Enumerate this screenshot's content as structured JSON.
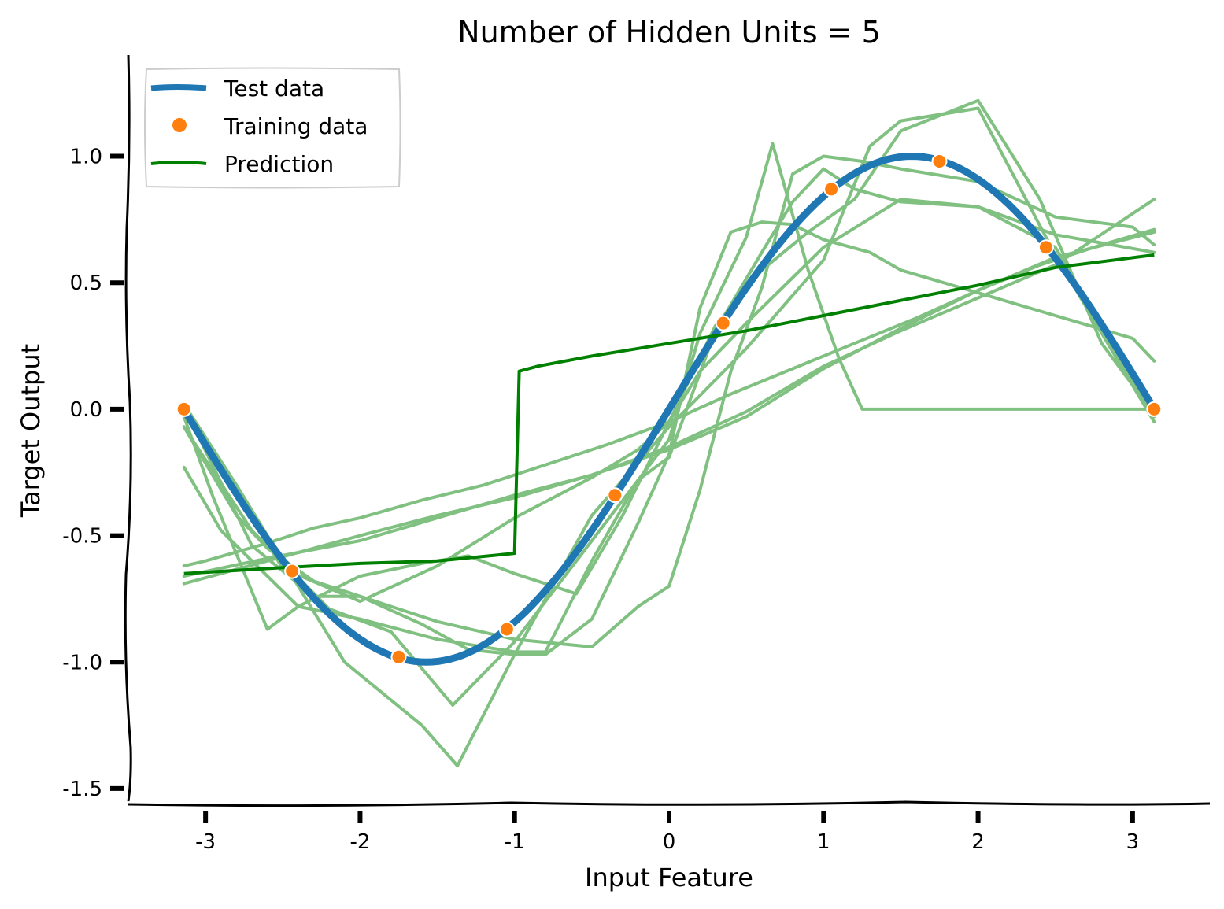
{
  "chart_data": {
    "type": "line",
    "title": "Number of Hidden Units = 5",
    "xlabel": "Input Feature",
    "ylabel": "Target Output",
    "xlim": [
      -3.5,
      3.5
    ],
    "ylim": [
      -1.55,
      1.4
    ],
    "x_ticks": [
      -3,
      -2,
      -1,
      0,
      1,
      2,
      3
    ],
    "x_tick_labels": [
      "-3",
      "-2",
      "-1",
      "0",
      "1",
      "2",
      "3"
    ],
    "y_ticks": [
      -1.5,
      -1.0,
      -0.5,
      0.0,
      0.5,
      1.0
    ],
    "y_tick_labels": [
      "-1.5",
      "-1.0",
      "-0.5",
      "0.0",
      "0.5",
      "1.0"
    ],
    "grid": false,
    "legend": {
      "placement": "top-left",
      "entries": [
        "Test data",
        "Training data",
        "Prediction"
      ]
    },
    "colors": {
      "test": "#1f77b4",
      "training": "#ff7f0e",
      "prediction": "#008000",
      "ensemble": "#80c080"
    },
    "test_curve": {
      "name": "Test data",
      "function": "sin(x)",
      "x_range": [
        -3.1416,
        3.1416
      ]
    },
    "training_points": {
      "name": "Training data",
      "x": [
        -3.14,
        -2.44,
        -1.75,
        -1.05,
        -0.35,
        0.35,
        1.05,
        1.75,
        2.44,
        3.14
      ],
      "y": [
        0.0,
        -0.64,
        -0.98,
        -0.87,
        -0.34,
        0.34,
        0.87,
        0.98,
        0.64,
        0.0
      ]
    },
    "prediction": {
      "name": "Prediction",
      "x": [
        -3.14,
        -2.6,
        -2.0,
        -1.5,
        -1.0,
        -0.97,
        -0.85,
        -0.5,
        -0.2,
        0.0,
        0.5,
        1.0,
        1.5,
        2.0,
        2.5,
        3.14
      ],
      "y": [
        -0.65,
        -0.63,
        -0.61,
        -0.6,
        -0.57,
        0.15,
        0.17,
        0.21,
        0.24,
        0.26,
        0.31,
        0.37,
        0.43,
        0.49,
        0.56,
        0.61
      ]
    },
    "ensemble_predictions": [
      {
        "x": [
          -3.14,
          -3.0,
          -2.6,
          -2.3,
          -2.0,
          -1.6,
          -1.2,
          -0.8,
          -0.4,
          0.0,
          0.4,
          0.8,
          1.2,
          1.6,
          2.0,
          2.4,
          2.8,
          3.14
        ],
        "y": [
          -0.62,
          -0.6,
          -0.53,
          -0.47,
          -0.43,
          -0.36,
          -0.3,
          -0.22,
          -0.14,
          -0.05,
          0.06,
          0.16,
          0.26,
          0.36,
          0.47,
          0.57,
          0.65,
          0.71
        ]
      },
      {
        "x": [
          -3.14,
          -2.6,
          -2.0,
          -1.5,
          -1.0,
          -0.5,
          0.0,
          0.5,
          1.0,
          1.5,
          2.0,
          2.5,
          3.14
        ],
        "y": [
          -0.69,
          -0.6,
          -0.5,
          -0.42,
          -0.35,
          -0.26,
          -0.15,
          -0.01,
          0.17,
          0.31,
          0.44,
          0.57,
          0.83
        ]
      },
      {
        "x": [
          -3.14,
          -2.6,
          -2.0,
          -1.5,
          -1.0,
          -0.5,
          0.0,
          0.5,
          1.0,
          1.5,
          2.0,
          2.5,
          3.14
        ],
        "y": [
          -0.66,
          -0.59,
          -0.52,
          -0.43,
          -0.34,
          -0.26,
          -0.16,
          -0.03,
          0.16,
          0.32,
          0.47,
          0.6,
          0.7
        ]
      },
      {
        "x": [
          -3.14,
          -2.5,
          -2.0,
          -1.5,
          -1.0,
          -0.5,
          -0.2,
          0.0,
          0.2,
          0.5,
          1.0,
          1.5,
          2.0,
          2.5,
          3.14
        ],
        "y": [
          0.0,
          -0.63,
          -0.76,
          -0.62,
          -0.43,
          -0.27,
          -0.16,
          -0.05,
          0.15,
          0.34,
          0.64,
          0.83,
          0.8,
          0.69,
          0.62
        ]
      },
      {
        "x": [
          -3.14,
          -2.8,
          -2.4,
          -2.1,
          -1.9,
          -1.6,
          -1.37,
          -1.0,
          -0.5,
          0.0,
          0.5,
          1.0,
          1.3,
          1.5,
          2.0,
          2.5,
          3.14
        ],
        "y": [
          0.02,
          -0.3,
          -0.7,
          -1.0,
          -1.1,
          -1.25,
          -1.41,
          -0.97,
          -0.42,
          -0.07,
          0.24,
          0.59,
          1.04,
          1.14,
          1.19,
          0.61,
          -0.05
        ]
      },
      {
        "x": [
          -3.14,
          -2.7,
          -2.2,
          -1.8,
          -1.4,
          -1.0,
          -0.5,
          0.0,
          0.2,
          0.5,
          0.67,
          0.9,
          1.1,
          1.25,
          1.5,
          2.0,
          2.5,
          3.14
        ],
        "y": [
          -0.07,
          -0.48,
          -0.79,
          -0.88,
          -1.17,
          -0.92,
          -0.52,
          -0.12,
          0.3,
          0.68,
          1.05,
          0.55,
          0.2,
          0.0,
          0.0,
          0.0,
          0.0,
          0.0
        ]
      },
      {
        "x": [
          -3.14,
          -2.9,
          -2.4,
          -2.0,
          -1.5,
          -1.0,
          -0.8,
          -0.5,
          -0.2,
          0.0,
          0.3,
          0.6,
          0.8,
          1.0,
          1.2,
          1.5,
          2.0,
          2.5,
          3.14
        ],
        "y": [
          -0.23,
          -0.48,
          -0.78,
          -0.83,
          -0.91,
          -0.96,
          -0.96,
          -0.6,
          -0.28,
          -0.19,
          0.31,
          0.62,
          0.82,
          0.95,
          0.87,
          0.82,
          0.8,
          0.64,
          -0.03
        ]
      },
      {
        "x": [
          -3.14,
          -2.95,
          -2.6,
          -2.4,
          -2.0,
          -1.6,
          -1.3,
          -1.0,
          -0.6,
          -0.3,
          0.0,
          0.3,
          0.6,
          0.9,
          1.2,
          1.5,
          2.0,
          2.4,
          2.8,
          3.14
        ],
        "y": [
          -0.03,
          -0.35,
          -0.87,
          -0.78,
          -0.66,
          -0.61,
          -0.58,
          -0.65,
          -0.73,
          -0.42,
          -0.05,
          0.33,
          0.55,
          0.7,
          0.83,
          1.1,
          1.22,
          0.83,
          0.26,
          -0.02
        ]
      },
      {
        "x": [
          -3.14,
          -2.8,
          -2.6,
          -2.3,
          -2.0,
          -1.5,
          -1.0,
          -0.5,
          -0.2,
          0.0,
          0.2,
          0.4,
          0.6,
          0.8,
          1.0,
          1.25,
          1.5,
          2.0,
          2.5,
          3.0,
          3.14
        ],
        "y": [
          -0.07,
          -0.42,
          -0.55,
          -0.68,
          -0.74,
          -0.84,
          -0.91,
          -0.94,
          -0.78,
          -0.7,
          -0.32,
          0.15,
          0.48,
          0.93,
          1.0,
          0.98,
          0.95,
          0.9,
          0.76,
          0.72,
          0.65
        ]
      },
      {
        "x": [
          -3.14,
          -2.7,
          -2.3,
          -2.0,
          -1.6,
          -1.3,
          -1.0,
          -0.8,
          -0.5,
          -0.2,
          0.0,
          0.2,
          0.4,
          0.6,
          0.8,
          1.0,
          1.3,
          1.5,
          2.0,
          2.5,
          3.0,
          3.14
        ],
        "y": [
          0.01,
          -0.54,
          -0.74,
          -0.74,
          -0.85,
          -0.95,
          -0.97,
          -0.97,
          -0.83,
          -0.45,
          -0.18,
          0.4,
          0.7,
          0.74,
          0.73,
          0.67,
          0.62,
          0.55,
          0.46,
          0.37,
          0.28,
          0.19
        ]
      }
    ]
  }
}
